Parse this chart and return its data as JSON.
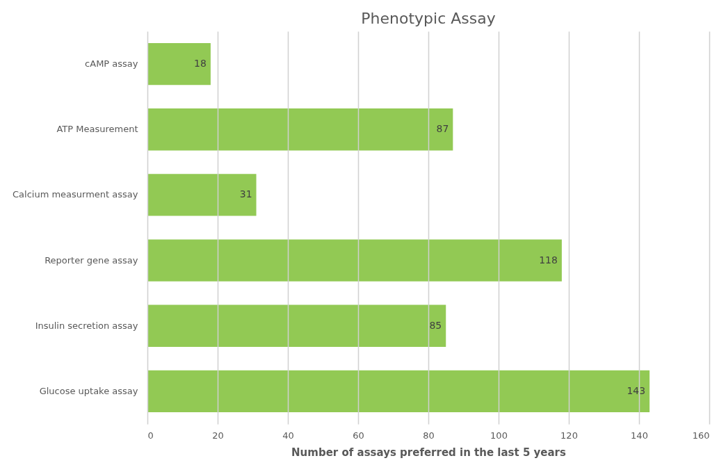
{
  "chart_data": {
    "type": "bar",
    "orientation": "horizontal",
    "title": "Phenotypic Assay",
    "xlabel": "Number of assays preferred in the last 5 years",
    "categories": [
      "cAMP assay",
      "ATP Measurement",
      "Calcium measurment assay",
      "Reporter gene assay",
      "Insulin secretion assay",
      "Glucose uptake assay"
    ],
    "values": [
      18,
      87,
      31,
      118,
      85,
      143
    ],
    "color": "#92c954",
    "xlim": [
      0,
      160
    ],
    "xticks": [
      0,
      20,
      40,
      60,
      80,
      100,
      120,
      140,
      160
    ],
    "grid": "x",
    "data_labels": true
  }
}
